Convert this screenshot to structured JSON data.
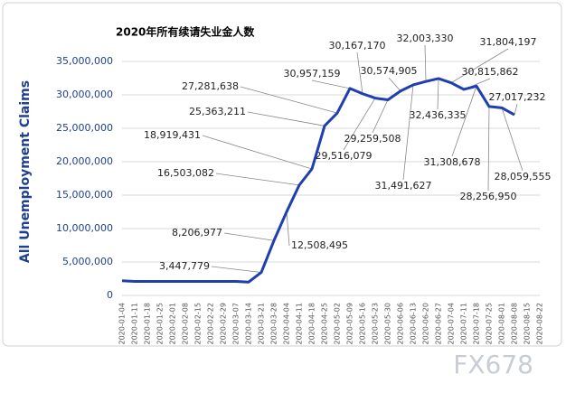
{
  "chart_data": {
    "type": "line",
    "title": "2020年所有续请失业金人数",
    "y_label": "All Unemployment  Claims",
    "watermark": "FX678",
    "categories": [
      "2020-01-04",
      "2020-01-11",
      "2020-01-18",
      "2020-01-25",
      "2020-02-01",
      "2020-02-08",
      "2020-02-15",
      "2020-02-22",
      "2020-02-29",
      "2020-03-07",
      "2020-03-14",
      "2020-03-21",
      "2020-03-28",
      "2020-04-04",
      "2020-04-11",
      "2020-04-18",
      "2020-04-25",
      "2020-05-02",
      "2020-05-09",
      "2020-05-16",
      "2020-05-23",
      "2020-05-30",
      "2020-06-06",
      "2020-06-13",
      "2020-06-20",
      "2020-06-27",
      "2020-07-04",
      "2020-07-11",
      "2020-07-18",
      "2020-07-25",
      "2020-08-01",
      "2020-08-08",
      "2020-08-15",
      "2020-08-22"
    ],
    "series": [
      {
        "name": "All Unemployment Claims",
        "color": "#1f3fae",
        "values": [
          2200000,
          2100000,
          2100000,
          2100000,
          2100000,
          2100000,
          2100000,
          2100000,
          2100000,
          2100000,
          2000000,
          3447779,
          8206977,
          12508495,
          16503082,
          18919431,
          25363211,
          27281638,
          30957159,
          30167170,
          29516079,
          29259508,
          30574905,
          31491627,
          32003330,
          32436335,
          31804197,
          30815862,
          31308678,
          28256950,
          28059555,
          27017232,
          null,
          null
        ],
        "value_labels": [
          null,
          null,
          null,
          null,
          null,
          null,
          null,
          null,
          null,
          null,
          null,
          "3,447,779",
          "8,206,977",
          "12,508,495",
          "16,503,082",
          "18,919,431",
          "25,363,211",
          "27,281,638",
          "30,957,159",
          "30,167,170",
          "29,516,079",
          "29,259,508",
          "30,574,905",
          "31,491,627",
          "32,003,330",
          "32,436,335",
          "31,804,197",
          "30,815,862",
          "31,308,678",
          "28,256,950",
          "28,059,555",
          "27,017,232",
          null,
          null
        ]
      }
    ],
    "ylim": [
      0,
      35000000
    ],
    "yticks": [
      0,
      {
        "value": 5000000,
        "label": "5,000,000"
      },
      {
        "value": 10000000,
        "label": "10,000,000"
      },
      {
        "value": 15000000,
        "label": "15,000,000"
      },
      {
        "value": 20000000,
        "label": "20,000,000"
      },
      {
        "value": 25000000,
        "label": "25,000,000"
      },
      {
        "value": 30000000,
        "label": "30,000,000"
      },
      {
        "value": 35000000,
        "label": "35,000,000"
      }
    ],
    "grid": true
  }
}
